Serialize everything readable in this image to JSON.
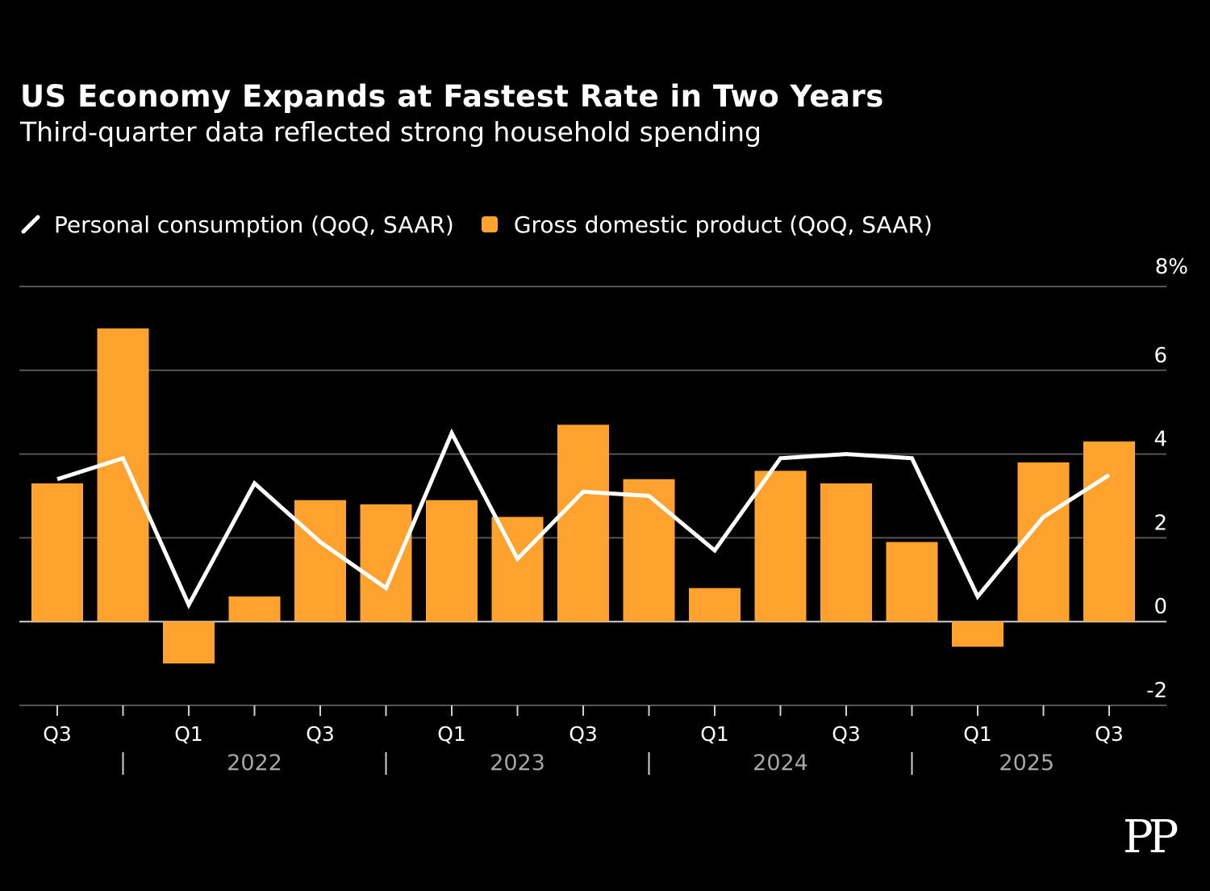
{
  "colors": {
    "background": "#000000",
    "bar": "#ffa22e",
    "line": "#ffffff",
    "grid": "#555555",
    "tick_text": "#ffffff",
    "year_text": "#a6a6a6"
  },
  "logo": {
    "text": "PP"
  },
  "chart_data": {
    "type": "bar",
    "title": "US Economy Expands at Fastest Rate in Two Years",
    "subtitle": "Third-quarter data reflected strong household spending",
    "legend": [
      {
        "name": "Personal consumption (QoQ, SAAR)",
        "type": "line",
        "color": "#ffffff",
        "icon": "line-icon"
      },
      {
        "name": "Gross domestic product (QoQ, SAAR)",
        "type": "bar",
        "color": "#ffa22e",
        "icon": "square-icon"
      }
    ],
    "categories": [
      "2021 Q3",
      "2021 Q4",
      "2022 Q1",
      "2022 Q2",
      "2022 Q3",
      "2022 Q4",
      "2023 Q1",
      "2023 Q2",
      "2023 Q3",
      "2023 Q4",
      "2024 Q1",
      "2024 Q2",
      "2024 Q3",
      "2024 Q4",
      "2025 Q1",
      "2025 Q2",
      "2025 Q3"
    ],
    "x_tick_labels": [
      "Q3",
      "",
      "Q1",
      "",
      "Q3",
      "",
      "Q1",
      "",
      "Q3",
      "",
      "Q1",
      "",
      "Q3",
      "",
      "Q1",
      "",
      "Q3"
    ],
    "year_labels": [
      "2022",
      "2023",
      "2024",
      "2025"
    ],
    "series": [
      {
        "name": "Gross domestic product (QoQ, SAAR)",
        "type": "bar",
        "values": [
          3.3,
          7.0,
          -1.0,
          0.6,
          2.9,
          2.8,
          2.9,
          2.5,
          4.7,
          3.4,
          0.8,
          3.6,
          3.3,
          1.9,
          -0.6,
          3.8,
          4.3
        ]
      },
      {
        "name": "Personal consumption (QoQ, SAAR)",
        "type": "line",
        "values": [
          3.4,
          3.9,
          0.4,
          3.3,
          1.9,
          0.8,
          4.5,
          1.5,
          3.1,
          3.0,
          1.7,
          3.9,
          4.0,
          3.9,
          0.6,
          2.5,
          3.5
        ]
      }
    ],
    "y_ticks": [
      {
        "value": 8,
        "label": "8%"
      },
      {
        "value": 6,
        "label": "6"
      },
      {
        "value": 4,
        "label": "4"
      },
      {
        "value": 2,
        "label": "2"
      },
      {
        "value": 0,
        "label": "0"
      },
      {
        "value": -2,
        "label": "-2"
      }
    ],
    "ylim": [
      -2,
      8
    ],
    "xlabel": "",
    "ylabel": "",
    "grid": true,
    "y_axis_side": "right"
  }
}
